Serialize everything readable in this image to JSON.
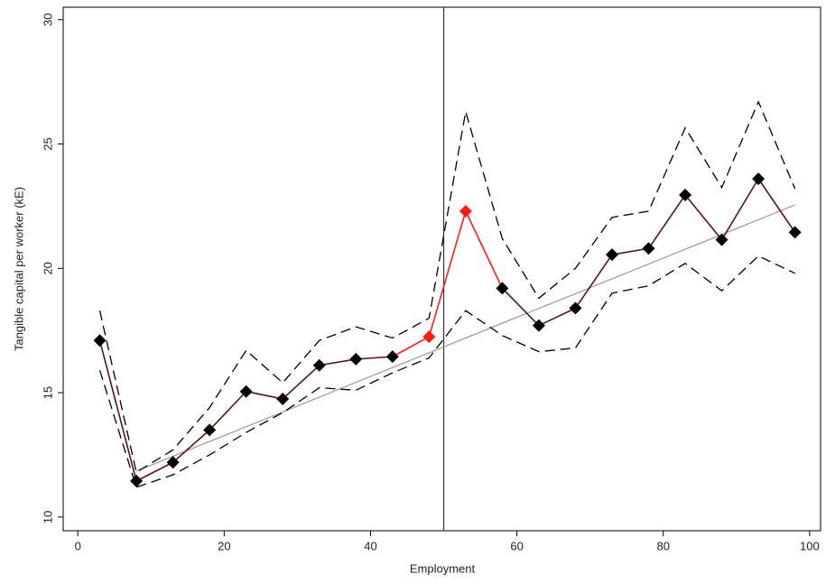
{
  "chart_data": {
    "type": "line",
    "x_label": "Employment",
    "y_label": "Tangible capital per worker (kE)",
    "x": [
      3,
      8,
      13,
      18,
      23,
      28,
      33,
      38,
      43,
      48,
      53,
      58,
      63,
      68,
      73,
      78,
      83,
      88,
      93,
      98
    ],
    "mean": {
      "color": "#5a1414",
      "marker_color": "#000000",
      "highlight_color": "#ff1a1a",
      "highlight_x": [
        48,
        53
      ],
      "values": [
        17.1,
        11.45,
        12.2,
        13.5,
        15.05,
        14.75,
        16.1,
        16.35,
        16.45,
        17.25,
        22.3,
        19.2,
        17.7,
        18.4,
        20.55,
        20.8,
        22.95,
        21.15,
        23.6,
        21.45
      ]
    },
    "upper": {
      "color": "#000000",
      "values": [
        18.3,
        11.8,
        12.7,
        14.4,
        16.7,
        15.4,
        17.1,
        17.65,
        17.2,
        18.0,
        26.3,
        21.2,
        18.8,
        20.0,
        22.05,
        22.3,
        25.65,
        23.25,
        26.7,
        23.2
      ]
    },
    "lower": {
      "color": "#000000",
      "values": [
        15.9,
        11.2,
        11.7,
        12.5,
        13.4,
        14.2,
        15.2,
        15.1,
        15.8,
        16.4,
        18.3,
        17.3,
        16.65,
        16.8,
        19.0,
        19.3,
        20.2,
        19.1,
        20.5,
        19.8
      ]
    },
    "fit": {
      "color": "#a0a0a0",
      "x": [
        8,
        98
      ],
      "values": [
        11.85,
        22.55
      ]
    },
    "cutoff": 50,
    "xlim": [
      -2,
      101.5
    ],
    "ylim": [
      9.45,
      30.5
    ],
    "xticks": [
      0,
      20,
      40,
      60,
      80,
      100
    ],
    "yticks": [
      10,
      15,
      20,
      25,
      30
    ]
  }
}
